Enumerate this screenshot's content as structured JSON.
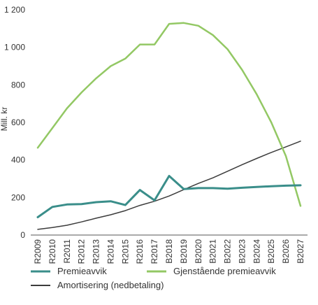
{
  "chart_data": {
    "type": "line",
    "title": "",
    "xlabel": "",
    "ylabel": "Mill. kr",
    "ylim": [
      0,
      1200
    ],
    "yticks": [
      0,
      200,
      400,
      600,
      800,
      1000,
      1200
    ],
    "ytick_labels": [
      "0",
      "200",
      "400",
      "600",
      "800",
      "1 000",
      "1 200"
    ],
    "grid": false,
    "legend_position": "bottom",
    "categories": [
      "R2009",
      "R2010",
      "R2011",
      "R2012",
      "R2013",
      "R2014",
      "R2015",
      "R2016",
      "R2017",
      "B2018",
      "B2019",
      "B2020",
      "B2021",
      "B2022",
      "B2023",
      "B2024",
      "B2025",
      "B2026",
      "B2027"
    ],
    "series": [
      {
        "name": "Premieavvik",
        "color": "#3a8e8a",
        "values": [
          95,
          150,
          163,
          165,
          175,
          180,
          160,
          240,
          185,
          315,
          245,
          250,
          250,
          247,
          252,
          256,
          260,
          263,
          265
        ]
      },
      {
        "name": "Gjenstående premieavvik",
        "color": "#93c864",
        "values": [
          465,
          570,
          675,
          760,
          835,
          900,
          940,
          1015,
          1015,
          1125,
          1130,
          1115,
          1065,
          990,
          880,
          750,
          600,
          420,
          155
        ]
      },
      {
        "name": "Amortisering (nedbetaling)",
        "color": "#3c3c3c",
        "values": [
          30,
          40,
          52,
          70,
          90,
          108,
          130,
          158,
          180,
          208,
          242,
          275,
          305,
          340,
          375,
          408,
          440,
          470,
          500
        ]
      }
    ]
  }
}
